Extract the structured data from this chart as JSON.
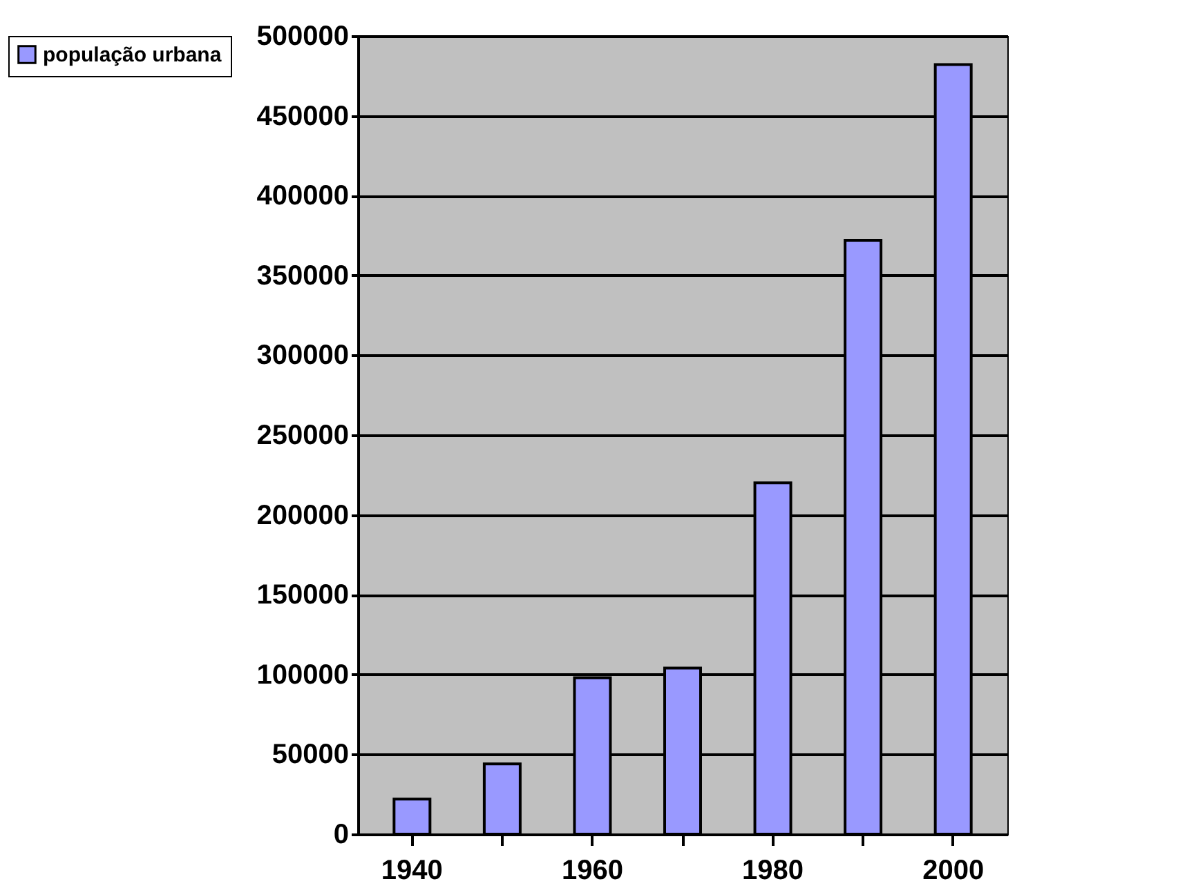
{
  "chart_data": {
    "type": "bar",
    "categories": [
      "1940",
      null,
      "1960",
      null,
      "1980",
      null,
      "2000"
    ],
    "series": [
      {
        "name": "população urbana",
        "color": "#9999ff",
        "values": [
          22000,
          44000,
          98000,
          104000,
          220000,
          372000,
          482000
        ]
      }
    ],
    "ylim": [
      0,
      500000
    ],
    "yticks": [
      0,
      50000,
      100000,
      150000,
      200000,
      250000,
      300000,
      350000,
      400000,
      450000,
      500000
    ],
    "grid": "y",
    "legend": "left"
  }
}
